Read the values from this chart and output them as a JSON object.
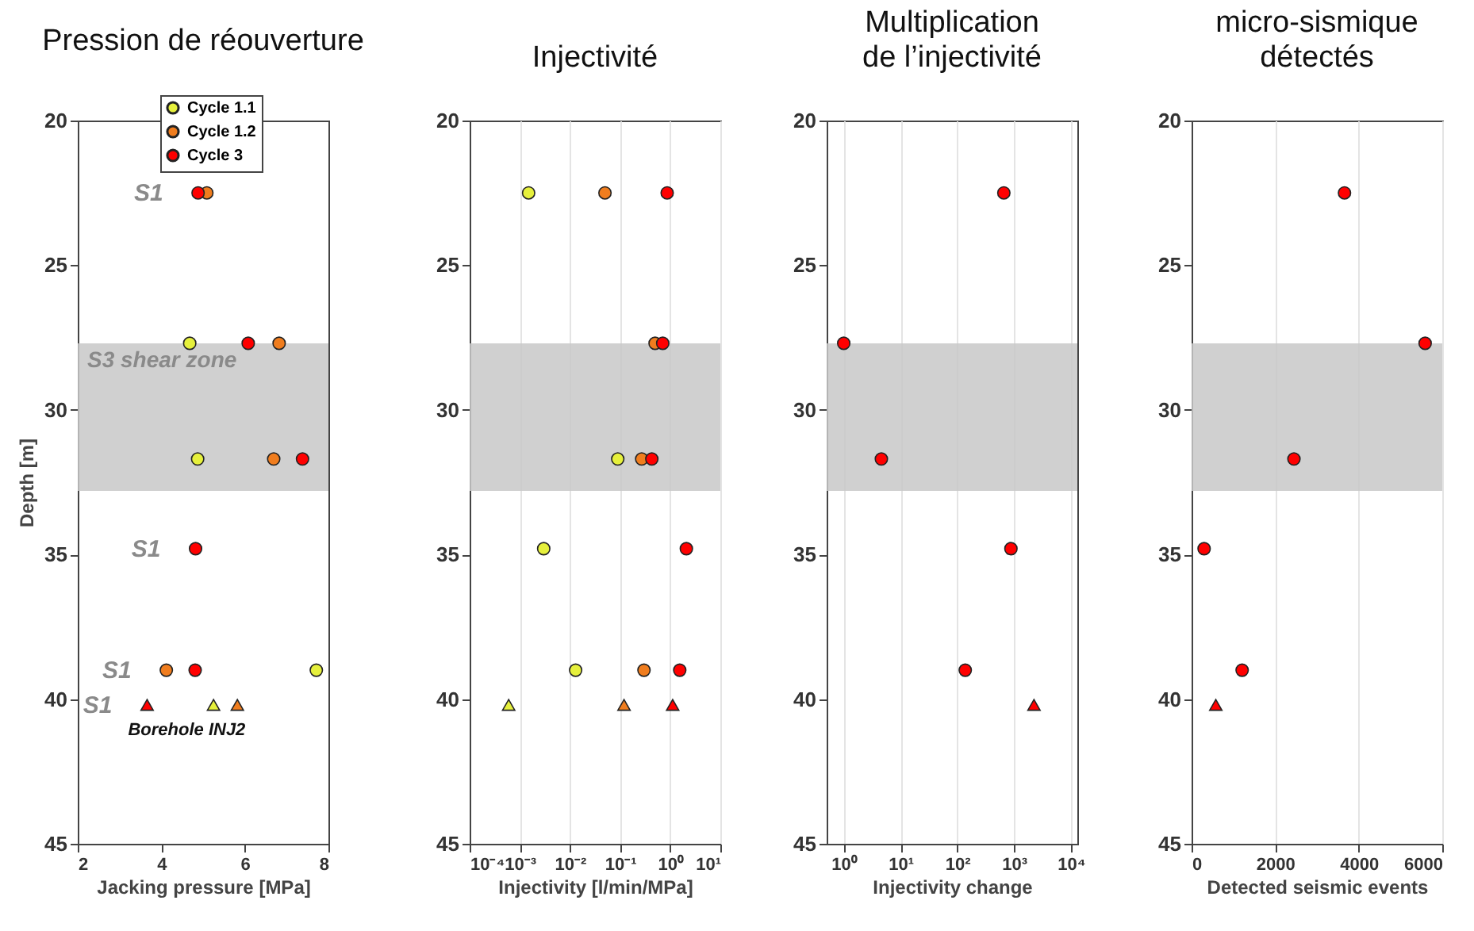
{
  "chart_data": [
    {
      "type": "scatter",
      "title": "Pression de réouverture",
      "xlabel": "Jacking pressure [MPa]",
      "ylabel": "Depth [m]",
      "xlim": [
        2,
        8
      ],
      "xticks": [
        2,
        4,
        6,
        8
      ],
      "ylim": [
        45,
        20
      ],
      "yticks": [
        20,
        25,
        30,
        35,
        40,
        45
      ],
      "grid": false,
      "legend": "top",
      "bands": [
        {
          "axis": "y",
          "from": 27.7,
          "to": 32.8,
          "label": "S3 shear zone",
          "color": "#c8c8c8"
        }
      ],
      "annotations": [
        {
          "text": "S1",
          "x": 4.88,
          "y": 22.5
        },
        {
          "text": "S1",
          "x": 4.82,
          "y": 34.8
        },
        {
          "text": "S1",
          "x": 4.12,
          "y": 39.0
        },
        {
          "text": "S1",
          "x": 3.66,
          "y": 40.2
        },
        {
          "text": "Borehole INJ2",
          "x": 3.66,
          "y": 40.2
        }
      ],
      "series": [
        {
          "name": "Cycle 1.1",
          "color": "#e6f03c",
          "marker": "circle",
          "x": [
            4.68,
            4.87,
            7.71
          ],
          "values": [
            27.7,
            31.7,
            39.0
          ]
        },
        {
          "name": "Cycle 1.2",
          "color": "#f07d1e",
          "marker": "circle",
          "x": [
            5.09,
            6.82,
            6.69,
            4.12
          ],
          "values": [
            22.5,
            27.7,
            31.7,
            39.0
          ]
        },
        {
          "name": "Cycle 3",
          "color": "#ff0000",
          "marker": "circle",
          "x": [
            4.88,
            6.08,
            7.38,
            4.82,
            4.81
          ],
          "values": [
            22.5,
            27.7,
            31.7,
            34.8,
            39.0
          ]
        },
        {
          "color": "#e6f03c",
          "marker": "triangle",
          "x": [
            5.25
          ],
          "values": [
            40.2
          ]
        },
        {
          "color": "#f07d1e",
          "marker": "triangle",
          "x": [
            5.82
          ],
          "values": [
            40.2
          ]
        },
        {
          "color": "#ff0000",
          "marker": "triangle",
          "x": [
            3.66
          ],
          "values": [
            40.2
          ]
        }
      ]
    },
    {
      "type": "scatter",
      "title": "Injectivité",
      "xlabel": "Injectivity [l/min/MPa]",
      "log": "x",
      "xlim": [
        0.0001,
        10
      ],
      "xticks": [
        {
          "value": 0.0001,
          "label": "10⁻⁴"
        },
        {
          "value": 0.001,
          "label": "10⁻³"
        },
        {
          "value": 0.01,
          "label": "10⁻²"
        },
        {
          "value": 0.1,
          "label": "10⁻¹"
        },
        {
          "value": 1,
          "label": "10⁰"
        },
        {
          "value": 10,
          "label": "10¹"
        }
      ],
      "ylim": [
        45,
        20
      ],
      "yticks": [
        20,
        25,
        30,
        35,
        40,
        45
      ],
      "grid": "x",
      "bands": [
        {
          "axis": "y",
          "from": 27.7,
          "to": 32.8,
          "color": "#c8c8c8"
        }
      ],
      "series": [
        {
          "color": "#e6f03c",
          "marker": "circle",
          "x": [
            0.0015,
            0.09,
            0.003,
            0.013
          ],
          "values": [
            22.5,
            31.7,
            34.8,
            39.0
          ]
        },
        {
          "color": "#f07d1e",
          "marker": "circle",
          "x": [
            0.05,
            0.5,
            0.27,
            0.3
          ],
          "values": [
            22.5,
            27.7,
            31.7,
            39.0
          ]
        },
        {
          "color": "#ff0000",
          "marker": "circle",
          "x": [
            0.87,
            0.71,
            0.43,
            2.1,
            1.55
          ],
          "values": [
            22.5,
            27.7,
            31.7,
            34.8,
            39.0
          ]
        },
        {
          "color": "#e6f03c",
          "marker": "triangle",
          "x": [
            0.0006
          ],
          "values": [
            40.2
          ]
        },
        {
          "color": "#f07d1e",
          "marker": "triangle",
          "x": [
            0.12
          ],
          "values": [
            40.2
          ]
        },
        {
          "color": "#ff0000",
          "marker": "triangle",
          "x": [
            1.12
          ],
          "values": [
            40.2
          ]
        }
      ]
    },
    {
      "type": "scatter",
      "title": "Multiplication\nde l’injectivité",
      "xlabel": "Injectivity change",
      "log": "x",
      "xlim": [
        0.5,
        13000
      ],
      "xticks": [
        {
          "value": 1,
          "label": "10⁰"
        },
        {
          "value": 10,
          "label": "10¹"
        },
        {
          "value": 100,
          "label": "10²"
        },
        {
          "value": 1000,
          "label": "10³"
        },
        {
          "value": 10000,
          "label": "10⁴"
        }
      ],
      "ylim": [
        45,
        20
      ],
      "yticks": [
        20,
        25,
        30,
        35,
        40,
        45
      ],
      "grid": "x",
      "bands": [
        {
          "axis": "y",
          "from": 27.7,
          "to": 32.8,
          "color": "#c8c8c8"
        }
      ],
      "series": [
        {
          "color": "#ff0000",
          "marker": "circle",
          "x": [
            660,
            1,
            4.6,
            880,
            138
          ],
          "values": [
            22.5,
            27.7,
            31.7,
            34.8,
            39.0
          ]
        },
        {
          "color": "#ff0000",
          "marker": "triangle",
          "x": [
            2240
          ],
          "values": [
            40.2
          ]
        }
      ]
    },
    {
      "type": "scatter",
      "title": "micro-sismique\ndétectés",
      "xlabel": "Detected seismic events",
      "xlim": [
        0,
        6000
      ],
      "xticks": [
        0,
        2000,
        4000,
        6000
      ],
      "ylim": [
        45,
        20
      ],
      "yticks": [
        20,
        25,
        30,
        35,
        40,
        45
      ],
      "grid": "x",
      "bands": [
        {
          "axis": "y",
          "from": 27.7,
          "to": 32.8,
          "color": "#c8c8c8"
        }
      ],
      "series": [
        {
          "color": "#ff0000",
          "marker": "circle",
          "x": [
            3660,
            5590,
            2450,
            300,
            1210
          ],
          "values": [
            22.5,
            27.7,
            31.7,
            34.8,
            39.0
          ]
        },
        {
          "color": "#ff0000",
          "marker": "triangle",
          "x": [
            580
          ],
          "values": [
            40.2
          ]
        }
      ]
    }
  ]
}
